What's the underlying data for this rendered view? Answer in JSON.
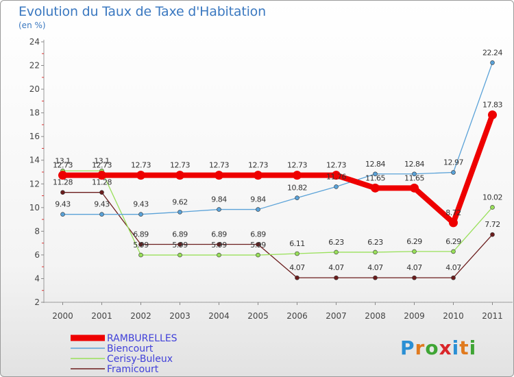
{
  "header": {
    "title": "Evolution du Taux de Taxe d'Habitation",
    "unit": "(en %)"
  },
  "logo": {
    "text": "Proxiti",
    "colors": [
      "#2a8fd4",
      "#e07a1f",
      "#3fa535",
      "#d9262a",
      "#2a8fd4",
      "#e07a1f",
      "#3fa535"
    ]
  },
  "chart_data": {
    "type": "line",
    "x": [
      "2000",
      "2001",
      "2002",
      "2003",
      "2004",
      "2005",
      "2006",
      "2007",
      "2008",
      "2009",
      "2010",
      "2011"
    ],
    "ylim": [
      2,
      24
    ],
    "yticks": [
      "2",
      "4",
      "6",
      "8",
      "10",
      "12",
      "14",
      "16",
      "18",
      "20",
      "22",
      "24"
    ],
    "grid": false,
    "legend_position": "bottom-left",
    "series": [
      {
        "name": "Framicourt",
        "color": "#6b1d1d",
        "values": [
          11.28,
          11.28,
          6.89,
          6.89,
          6.89,
          6.89,
          4.07,
          4.07,
          4.07,
          4.07,
          4.07,
          7.72
        ],
        "labels": [
          "11.28",
          "11.28",
          "6.89",
          "6.89",
          "6.89",
          "6.89",
          "4.07",
          "4.07",
          "4.07",
          "4.07",
          "4.07",
          "7.72"
        ]
      },
      {
        "name": "Cerisy-Buleux",
        "color": "#99e05a",
        "values": [
          13.1,
          13.1,
          5.99,
          5.99,
          5.99,
          5.99,
          6.11,
          6.23,
          6.23,
          6.29,
          6.29,
          10.02
        ],
        "labels": [
          "13.1",
          "13.1",
          "5.99",
          "5.99",
          "5.99",
          "5.99",
          "6.11",
          "6.23",
          "6.23",
          "6.29",
          "6.29",
          "10.02"
        ]
      },
      {
        "name": "Biencourt",
        "color": "#5aa2d8",
        "values": [
          9.43,
          9.43,
          9.43,
          9.62,
          9.84,
          9.84,
          10.82,
          11.76,
          12.84,
          12.84,
          12.97,
          22.24
        ],
        "labels": [
          "9.43",
          "9.43",
          "9.43",
          "9.62",
          "9.84",
          "9.84",
          "10.82",
          "11.76",
          "12.84",
          "12.84",
          "12.97",
          "22.24"
        ]
      },
      {
        "name": "RAMBURELLES",
        "color": "#ee0000",
        "values": [
          12.73,
          12.73,
          12.73,
          12.73,
          12.73,
          12.73,
          12.73,
          12.73,
          11.65,
          11.65,
          8.72,
          17.83
        ],
        "labels": [
          "12.73",
          "12.73",
          "12.73",
          "12.73",
          "12.73",
          "12.73",
          "12.73",
          "12.73",
          "11.65",
          "11.65",
          "8.72",
          "17.83"
        ]
      }
    ],
    "legend": [
      "RAMBURELLES",
      "Biencourt",
      "Cerisy-Buleux",
      "Framicourt"
    ]
  }
}
